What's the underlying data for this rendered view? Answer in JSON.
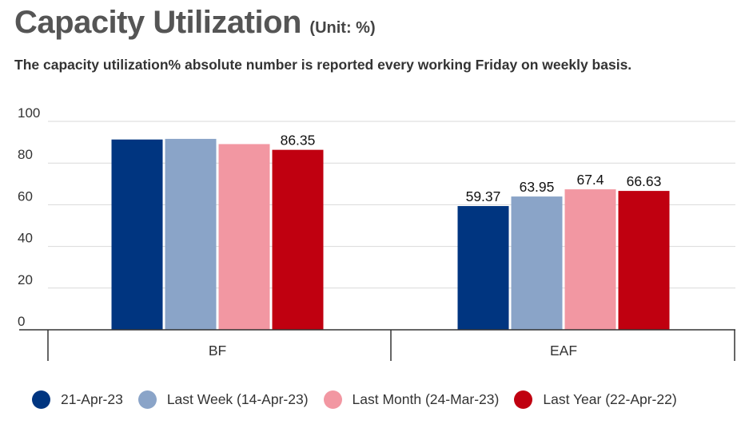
{
  "header": {
    "title": "Capacity Utilization",
    "unit": "(Unit: %)",
    "subtitle": "The capacity utilization% absolute number is reported every working Friday on weekly basis."
  },
  "chart_data": {
    "type": "bar",
    "categories": [
      "BF",
      "EAF"
    ],
    "series": [
      {
        "name": "21-Apr-23",
        "color": "#003580",
        "values": [
          91.3,
          59.37
        ],
        "labels": [
          "",
          "59.37"
        ]
      },
      {
        "name": "Last Week (14-Apr-23)",
        "color": "#8AA4C8",
        "values": [
          91.6,
          63.95
        ],
        "labels": [
          "",
          "63.95"
        ]
      },
      {
        "name": "Last Month (24-Mar-23)",
        "color": "#F297A2",
        "values": [
          89.1,
          67.4
        ],
        "labels": [
          "",
          "67.4"
        ]
      },
      {
        "name": "Last Year (22-Apr-22)",
        "color": "#C00010",
        "values": [
          86.35,
          66.63
        ],
        "labels": [
          "86.35",
          "66.63"
        ]
      }
    ],
    "yticks": [
      0,
      20,
      40,
      60,
      80,
      100
    ],
    "ylim": [
      0,
      100
    ],
    "grid": true,
    "legend": "bottom"
  }
}
